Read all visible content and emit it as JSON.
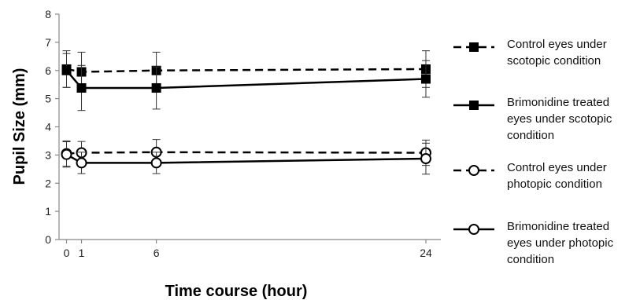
{
  "chart_data": {
    "type": "line",
    "xlabel": "Time course (hour)",
    "ylabel": "Pupil Size (mm)",
    "xlim": [
      -0.5,
      25
    ],
    "ylim": [
      0,
      8
    ],
    "x_ticks": [
      0,
      1,
      6,
      24
    ],
    "y_ticks": [
      0,
      1,
      2,
      3,
      4,
      5,
      6,
      7,
      8
    ],
    "x": [
      0,
      1,
      6,
      24
    ],
    "grid": false,
    "legend_position": "right",
    "series": [
      {
        "name": "Control eyes under scotopic condition",
        "values": [
          6.05,
          5.95,
          6.0,
          6.05
        ],
        "errors": [
          0.65,
          0.7,
          0.65,
          0.65
        ],
        "line": "dashed",
        "marker": "filled-square",
        "color": "#000000"
      },
      {
        "name": "Brimonidine treated eyes under scotopic condition",
        "values": [
          6.0,
          5.38,
          5.38,
          5.7
        ],
        "errors": [
          0.6,
          0.8,
          0.75,
          0.65
        ],
        "line": "solid",
        "marker": "filled-square",
        "color": "#000000"
      },
      {
        "name": "Control eyes under photopic condition",
        "values": [
          3.05,
          3.08,
          3.1,
          3.08
        ],
        "errors": [
          0.45,
          0.4,
          0.45,
          0.45
        ],
        "line": "dashed",
        "marker": "open-circle",
        "color": "#000000"
      },
      {
        "name": "Brimonidine treated eyes under photopic condition",
        "values": [
          3.02,
          2.72,
          2.72,
          2.87
        ],
        "errors": [
          0.45,
          0.38,
          0.38,
          0.55
        ],
        "line": "solid",
        "marker": "open-circle",
        "color": "#000000"
      }
    ]
  },
  "legend": {
    "items": [
      {
        "lines": [
          "Control eyes under",
          "scotopic condition"
        ]
      },
      {
        "lines": [
          "Brimonidine treated",
          "eyes under scotopic",
          "condition"
        ]
      },
      {
        "lines": [
          "Control eyes under",
          "photopic condition"
        ]
      },
      {
        "lines": [
          "Brimonidine treated",
          "eyes under photopic",
          "condition"
        ]
      }
    ]
  }
}
